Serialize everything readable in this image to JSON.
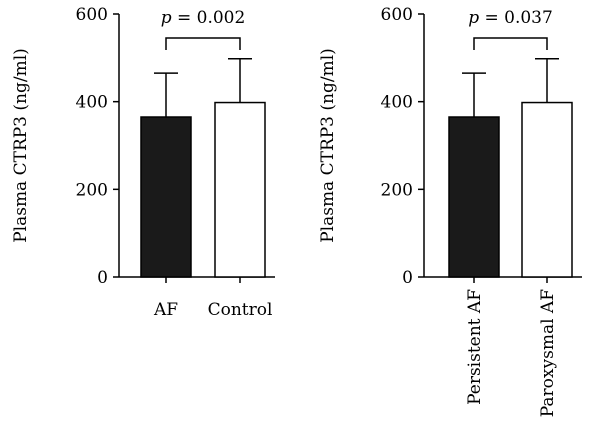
{
  "chart_data": [
    {
      "type": "bar",
      "ylabel": "Plasma CTRP3 (ng/ml)",
      "ylim": [
        0,
        600
      ],
      "yticks": [
        0,
        200,
        400,
        600
      ],
      "categories": [
        "AF",
        "Control"
      ],
      "values": [
        365,
        398
      ],
      "errors": [
        100,
        100
      ],
      "bar_fill": [
        "#1a1a1a",
        "#ffffff"
      ],
      "annotation": {
        "p_symbol": "p",
        "p_text": " = 0.002"
      },
      "xtick_rotation": 0
    },
    {
      "type": "bar",
      "ylabel": "Plasma CTRP3 (ng/ml)",
      "ylim": [
        0,
        600
      ],
      "yticks": [
        0,
        200,
        400,
        600
      ],
      "categories": [
        "Persistent AF",
        "Paroxysmal AF"
      ],
      "values": [
        365,
        398
      ],
      "errors": [
        100,
        100
      ],
      "bar_fill": [
        "#1a1a1a",
        "#ffffff"
      ],
      "annotation": {
        "p_symbol": "p",
        "p_text": " = 0.037"
      },
      "xtick_rotation": -90
    }
  ]
}
